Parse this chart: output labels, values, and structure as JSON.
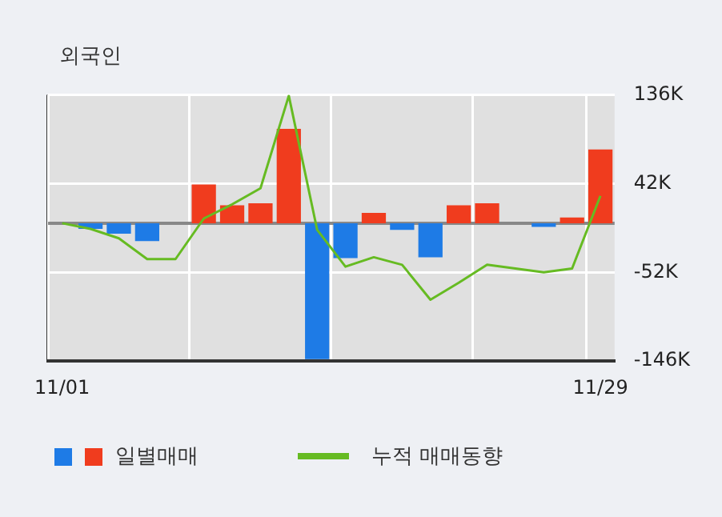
{
  "chart_data": {
    "type": "bar",
    "title": "외국인",
    "categories": [
      "11/01",
      null,
      null,
      null,
      null,
      null,
      null,
      null,
      null,
      null,
      null,
      null,
      null,
      null,
      null,
      null,
      null,
      null,
      null,
      "11/29"
    ],
    "series": [
      {
        "name": "일별매매",
        "colors": [
          "#1e7be6",
          "#1e7be6",
          "#1e7be6",
          "#1e7be6",
          "#f03c1e",
          "#f03c1e",
          "#f03c1e",
          "#f03c1e",
          "#f03c1e",
          "#1e7be6",
          "#1e7be6",
          "#f03c1e",
          "#1e7be6",
          "#1e7be6",
          "#f03c1e",
          "#f03c1e",
          "#f03c1e",
          "#1e7be6",
          "#f03c1e",
          "#f03c1e"
        ],
        "values": [
          0,
          -6,
          -11,
          -19,
          0,
          41,
          19,
          21,
          100,
          -144,
          -37,
          11,
          -7,
          -36,
          19,
          21,
          0,
          -4,
          6,
          78
        ]
      },
      {
        "name": "누적 매매동향",
        "type": "line",
        "color": "#66bb22",
        "values": [
          0,
          -6,
          -16,
          -38,
          -38,
          5,
          20,
          37,
          135,
          -7,
          -46,
          -36,
          -44,
          -81,
          -63,
          -44,
          -48,
          -52,
          -48,
          29
        ]
      }
    ],
    "ylim": [
      -146,
      136
    ],
    "yticks": [
      {
        "value": 136,
        "label": "136K"
      },
      {
        "value": 42,
        "label": "42K"
      },
      {
        "value": -52,
        "label": "-52K"
      },
      {
        "value": -146,
        "label": "-146K"
      }
    ],
    "grid": true,
    "legend": "bottom",
    "marker": "none"
  }
}
